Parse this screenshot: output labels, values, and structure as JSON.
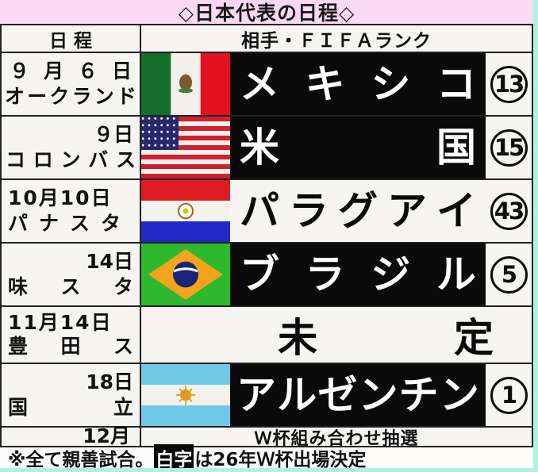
{
  "title": "◇日本代表の日程◇",
  "header": {
    "date_col": "日程",
    "opponent_col": "相手・ＦＩＦＡランク"
  },
  "rows": [
    {
      "date_line1": "９月６日",
      "date_line2": "オークランド",
      "opponent": "メキシコ",
      "fifa_rank": "13",
      "flag": "mexico-flag",
      "white_text_qualified": true
    },
    {
      "date_line1": "９日",
      "date_line2": "コロンバス",
      "opponent": "米国",
      "fifa_rank": "15",
      "flag": "usa-flag",
      "white_text_qualified": true
    },
    {
      "date_line1": "10月10日",
      "date_line2": "パナスタ",
      "opponent": "パラグアイ",
      "fifa_rank": "43",
      "flag": "paraguay-flag",
      "white_text_qualified": false
    },
    {
      "date_line1": "14日",
      "date_line2": "味スタ",
      "opponent": "ブラジル",
      "fifa_rank": "5",
      "flag": "brazil-flag",
      "white_text_qualified": true
    },
    {
      "date_line1": "11月14日",
      "date_line2": "豊田ス",
      "opponent": "未定",
      "fifa_rank": "",
      "flag": "",
      "white_text_qualified": false
    },
    {
      "date_line1": "18日",
      "date_line2": "国立",
      "opponent": "アルゼンチン",
      "fifa_rank": "1",
      "flag": "argentina-flag",
      "white_text_qualified": true
    },
    {
      "date_line1": "12月",
      "date_line2": "",
      "opponent": "Ｗ杯組み合わせ抽選",
      "fifa_rank": "",
      "flag": "",
      "white_text_qualified": false
    }
  ],
  "footer": {
    "prefix": "※全て親善試合。",
    "highlight": "白字",
    "suffix": "は26年Ｗ杯出場決定"
  },
  "colors": {
    "title_bg": "#fbd8f4",
    "frame_edge": "#aef2e4",
    "qualified_box_bg": "#0a0a0a",
    "qualified_text": "#ffffff",
    "cell_bg": "#f6f5f2",
    "grid_line": "#222222"
  }
}
